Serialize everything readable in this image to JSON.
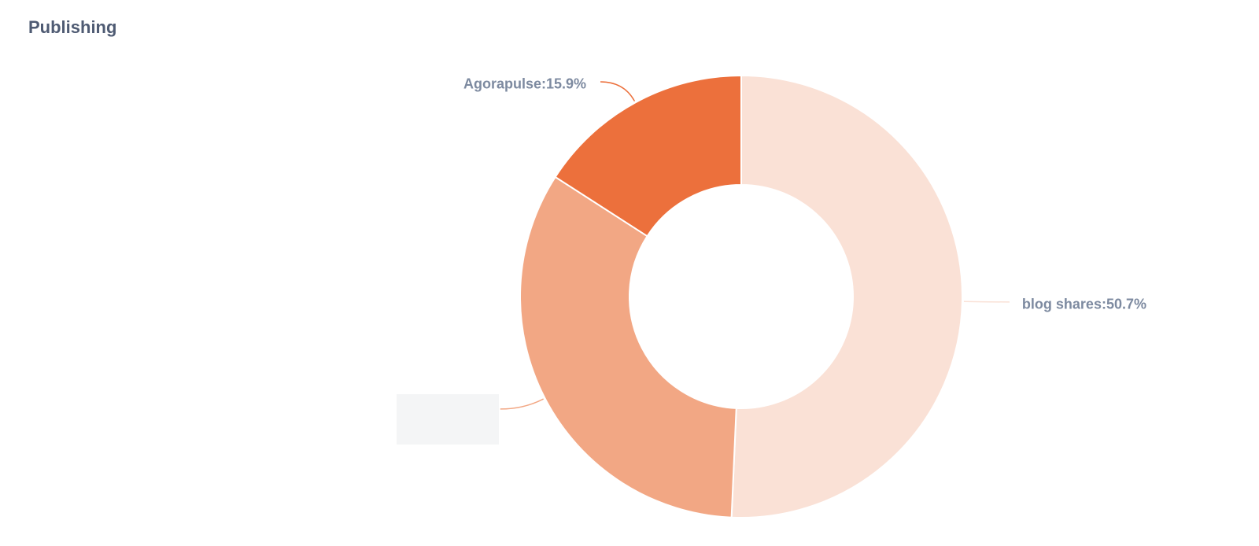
{
  "title": "Publishing",
  "chart_data": {
    "type": "donut",
    "values": [
      50.7,
      33.4,
      15.9
    ],
    "value_labels": [
      "blog shares:50.7%",
      null,
      "Agorapulse:15.9%"
    ],
    "colors": [
      "#fae1d6",
      "#f2a784",
      "#ec703c"
    ]
  }
}
